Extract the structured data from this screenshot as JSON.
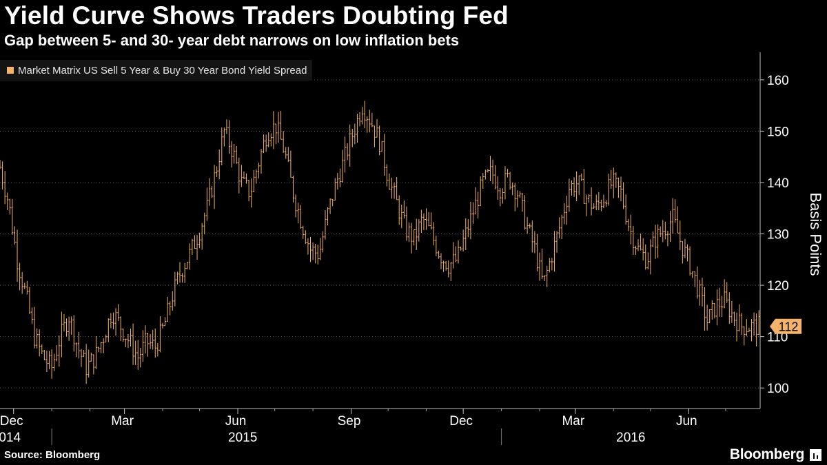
{
  "header": {
    "title": "Yield Curve Shows Traders Doubting Fed",
    "subtitle": "Gap between 5- and 30- year debt narrows on low inflation bets"
  },
  "footer": {
    "source": "Source: Bloomberg",
    "logo": "Bloomberg"
  },
  "colors": {
    "background": "#000000",
    "series": "#f5b26b",
    "text": "#ffffff",
    "grid": "#5a5a5a"
  },
  "chart_data": {
    "type": "line",
    "style": "ohlc-bars",
    "title": "Yield Curve Shows Traders Doubting Fed",
    "subtitle": "Gap between 5- and 30- year debt narrows on low inflation bets",
    "ylabel": "Basis Points",
    "ylim": [
      96,
      164
    ],
    "y_ticks": [
      100,
      110,
      120,
      130,
      140,
      150,
      160
    ],
    "y_tick_labels": [
      "100",
      "110",
      "120",
      "130",
      "140",
      "150",
      "160"
    ],
    "y_axis_position": "right",
    "grid": "horizontal dotted",
    "legend_position": "top-left",
    "x_range": [
      "2014-11-20",
      "2016-07-29"
    ],
    "x_ticks": [
      {
        "label": "Dec",
        "date": "2014-12-01"
      },
      {
        "label": "Mar",
        "date": "2015-03-01"
      },
      {
        "label": "Jun",
        "date": "2015-06-01"
      },
      {
        "label": "Sep",
        "date": "2015-09-01"
      },
      {
        "label": "Dec",
        "date": "2015-12-01"
      },
      {
        "label": "Mar",
        "date": "2016-03-01"
      },
      {
        "label": "Jun",
        "date": "2016-06-01"
      }
    ],
    "year_labels": [
      {
        "label": "2014",
        "date": "2014-11-25"
      },
      {
        "label": "2015",
        "date": "2015-06-05"
      },
      {
        "label": "2016",
        "date": "2016-04-15"
      }
    ],
    "year_boundaries": [
      "2015-01-01",
      "2016-01-01"
    ],
    "last_value_label": "112",
    "series": [
      {
        "name": "Market Matrix US Sell 5 Year & Buy 30 Year Bond Yield Spread",
        "x": [
          "2014-11-20",
          "2014-11-27",
          "2014-12-04",
          "2014-12-11",
          "2014-12-18",
          "2014-12-25",
          "2015-01-01",
          "2015-01-08",
          "2015-01-15",
          "2015-01-22",
          "2015-01-29",
          "2015-02-05",
          "2015-02-12",
          "2015-02-19",
          "2015-02-26",
          "2015-03-05",
          "2015-03-12",
          "2015-03-19",
          "2015-03-26",
          "2015-04-02",
          "2015-04-09",
          "2015-04-16",
          "2015-04-23",
          "2015-04-30",
          "2015-05-07",
          "2015-05-14",
          "2015-05-21",
          "2015-05-28",
          "2015-06-04",
          "2015-06-11",
          "2015-06-18",
          "2015-06-25",
          "2015-07-02",
          "2015-07-09",
          "2015-07-16",
          "2015-07-23",
          "2015-07-30",
          "2015-08-06",
          "2015-08-13",
          "2015-08-20",
          "2015-08-27",
          "2015-09-03",
          "2015-09-10",
          "2015-09-17",
          "2015-09-24",
          "2015-10-01",
          "2015-10-08",
          "2015-10-15",
          "2015-10-22",
          "2015-10-29",
          "2015-11-05",
          "2015-11-12",
          "2015-11-19",
          "2015-11-26",
          "2015-12-03",
          "2015-12-10",
          "2015-12-17",
          "2015-12-24",
          "2015-12-31",
          "2016-01-07",
          "2016-01-14",
          "2016-01-21",
          "2016-01-28",
          "2016-02-04",
          "2016-02-11",
          "2016-02-18",
          "2016-02-25",
          "2016-03-03",
          "2016-03-10",
          "2016-03-17",
          "2016-03-24",
          "2016-03-31",
          "2016-04-07",
          "2016-04-14",
          "2016-04-21",
          "2016-04-28",
          "2016-05-05",
          "2016-05-12",
          "2016-05-19",
          "2016-05-26",
          "2016-06-02",
          "2016-06-09",
          "2016-06-16",
          "2016-06-23",
          "2016-06-30",
          "2016-07-07",
          "2016-07-14",
          "2016-07-21",
          "2016-07-28"
        ],
        "values": [
          143,
          136,
          125,
          118,
          110,
          106,
          104,
          110,
          114,
          108,
          104,
          106,
          110,
          115,
          112,
          109,
          106,
          109,
          108,
          112,
          118,
          123,
          126,
          130,
          135,
          142,
          150,
          146,
          140,
          138,
          144,
          150,
          151,
          146,
          138,
          132,
          127,
          126,
          134,
          140,
          145,
          150,
          155,
          152,
          148,
          141,
          136,
          131,
          129,
          133,
          130,
          126,
          124,
          125,
          130,
          135,
          140,
          142,
          139,
          141,
          138,
          132,
          127,
          120,
          126,
          132,
          139,
          140,
          137,
          135,
          137,
          140,
          138,
          131,
          127,
          125,
          129,
          131,
          133,
          128,
          124,
          119,
          113,
          116,
          117,
          114,
          112,
          112,
          112
        ]
      }
    ]
  }
}
